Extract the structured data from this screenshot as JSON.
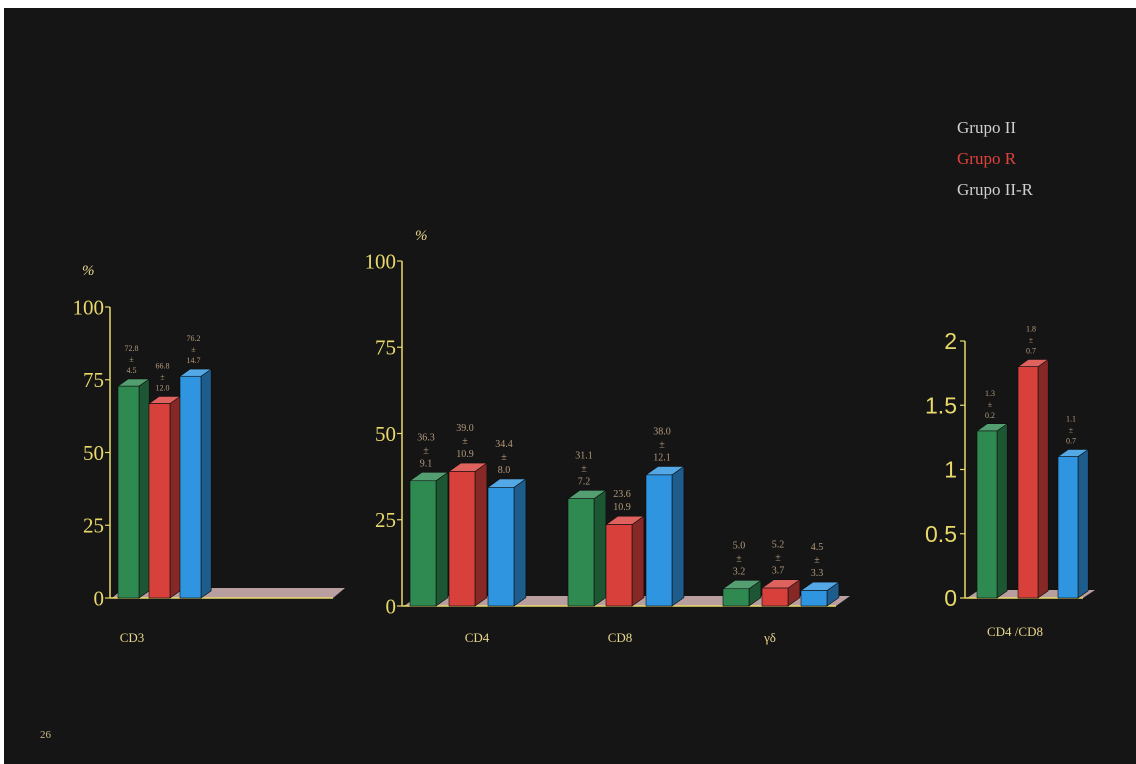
{
  "page_number": "26",
  "colors": {
    "background": "#151515",
    "axis": "#e8d96a",
    "label_text": "#e8d78c",
    "value_text": "#b49a7c",
    "floor": "#b99ea0"
  },
  "legend": [
    {
      "name": "Grupo II",
      "color": "#cfcfcf"
    },
    {
      "name": "Grupo R",
      "color": "#e0423a"
    },
    {
      "name": "Grupo II-R",
      "color": "#cfcfcf"
    }
  ],
  "chart_data": [
    {
      "type": "bar",
      "ylabel": "%",
      "ylim": [
        0,
        100
      ],
      "yticks": [
        "0",
        "25",
        "50",
        "75",
        "100"
      ],
      "categories": [
        "CD3"
      ],
      "series": [
        {
          "name": "Grupo II",
          "color": "#2f8a52",
          "values": [
            72.8
          ],
          "labels": [
            [
              "72.8",
              "±",
              "4.5"
            ]
          ]
        },
        {
          "name": "Grupo R",
          "color": "#d8403c",
          "values": [
            66.8
          ],
          "labels": [
            [
              "66.8",
              "±",
              "12.0"
            ]
          ]
        },
        {
          "name": "Grupo II-R",
          "color": "#2f95e0",
          "values": [
            76.2
          ],
          "labels": [
            [
              "76.2",
              "±",
              "14.7"
            ]
          ]
        }
      ]
    },
    {
      "type": "bar",
      "ylabel": "%",
      "ylim": [
        0,
        100
      ],
      "yticks": [
        "0",
        "25",
        "50",
        "75",
        "100"
      ],
      "categories": [
        "CD4",
        "CD8",
        "γδ"
      ],
      "series": [
        {
          "name": "Grupo II",
          "color": "#2f8a52",
          "values": [
            36.3,
            31.1,
            5.0
          ],
          "labels": [
            [
              "36.3",
              "±",
              "9.1"
            ],
            [
              "31.1",
              "±",
              "7.2"
            ],
            [
              "5.0",
              "±",
              "3.2"
            ]
          ]
        },
        {
          "name": "Grupo R",
          "color": "#d8403c",
          "values": [
            39.0,
            23.6,
            5.2
          ],
          "labels": [
            [
              "39.0",
              "±",
              "10.9"
            ],
            [
              "23.6",
              "10.9"
            ],
            [
              "5.2",
              "±",
              "3.7"
            ]
          ]
        },
        {
          "name": "Grupo II-R",
          "color": "#2f95e0",
          "values": [
            34.4,
            38.0,
            4.5
          ],
          "labels": [
            [
              "34.4",
              "±",
              "8.0"
            ],
            [
              "38.0",
              "±",
              "12.1"
            ],
            [
              "4.5",
              "±",
              "3.3"
            ]
          ]
        }
      ]
    },
    {
      "type": "bar",
      "ylim": [
        0,
        2
      ],
      "yticks": [
        "0",
        "0.5",
        "1",
        "1.5",
        "2"
      ],
      "categories": [
        "CD4 /CD8"
      ],
      "series": [
        {
          "name": "Grupo II",
          "color": "#2f8a52",
          "values": [
            1.3
          ],
          "labels": [
            [
              "1.3",
              "±",
              "0.2"
            ]
          ]
        },
        {
          "name": "Grupo R",
          "color": "#d8403c",
          "values": [
            1.8
          ],
          "labels": [
            [
              "1.8",
              "±",
              "0.7"
            ]
          ]
        },
        {
          "name": "Grupo II-R",
          "color": "#2f95e0",
          "values": [
            1.1
          ],
          "labels": [
            [
              "1.1",
              "±",
              "0.7"
            ]
          ]
        }
      ]
    }
  ]
}
